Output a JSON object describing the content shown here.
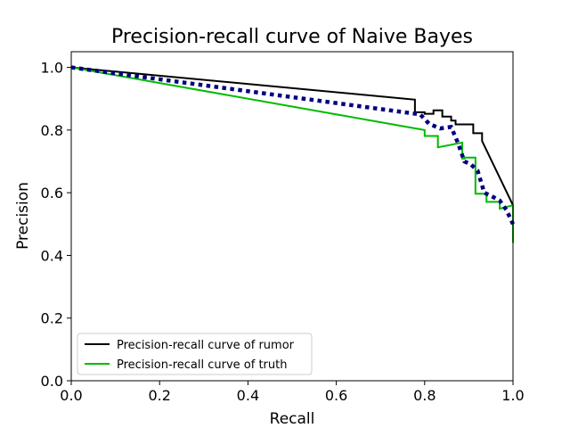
{
  "chart_data": {
    "type": "line",
    "title": "Precision-recall curve of Naive Bayes",
    "xlabel": "Recall",
    "ylabel": "Precision",
    "xlim": [
      0.0,
      1.0
    ],
    "ylim": [
      0.0,
      1.05
    ],
    "xticks": [
      "0.0",
      "0.2",
      "0.4",
      "0.6",
      "0.8",
      "1.0"
    ],
    "yticks": [
      "0.0",
      "0.2",
      "0.4",
      "0.6",
      "0.8",
      "1.0"
    ],
    "grid": false,
    "legend_position": "lower-left",
    "series": [
      {
        "name": "Precision-recall curve of rumor",
        "color": "#000000",
        "style": "solid",
        "x": [
          0.0,
          0.778,
          0.778,
          0.8,
          0.8,
          0.82,
          0.82,
          0.84,
          0.84,
          0.86,
          0.86,
          0.87,
          0.87,
          0.91,
          0.91,
          0.93,
          0.93,
          1.0
        ],
        "y": [
          1.0,
          0.897,
          0.857,
          0.857,
          0.852,
          0.852,
          0.863,
          0.863,
          0.843,
          0.843,
          0.83,
          0.83,
          0.818,
          0.818,
          0.79,
          0.79,
          0.765,
          0.56
        ]
      },
      {
        "name": "Precision-recall curve of truth",
        "color": "#00bb00",
        "style": "solid",
        "x": [
          0.0,
          0.8,
          0.8,
          0.83,
          0.83,
          0.885,
          0.885,
          0.89,
          0.89,
          0.915,
          0.915,
          0.94,
          0.94,
          0.97,
          0.97,
          1.0,
          1.0
        ],
        "y": [
          1.0,
          0.8,
          0.781,
          0.781,
          0.745,
          0.76,
          0.709,
          0.709,
          0.712,
          0.712,
          0.597,
          0.597,
          0.571,
          0.571,
          0.549,
          0.56,
          0.44
        ]
      },
      {
        "color": "#000080",
        "style": "dotted",
        "x": [
          0.0,
          0.79,
          0.81,
          0.835,
          0.86,
          0.875,
          0.89,
          0.905,
          0.92,
          0.935,
          0.95,
          0.97,
          0.985,
          1.0
        ],
        "y": [
          1.0,
          0.85,
          0.82,
          0.805,
          0.81,
          0.76,
          0.7,
          0.69,
          0.67,
          0.6,
          0.59,
          0.575,
          0.545,
          0.5
        ]
      }
    ]
  }
}
